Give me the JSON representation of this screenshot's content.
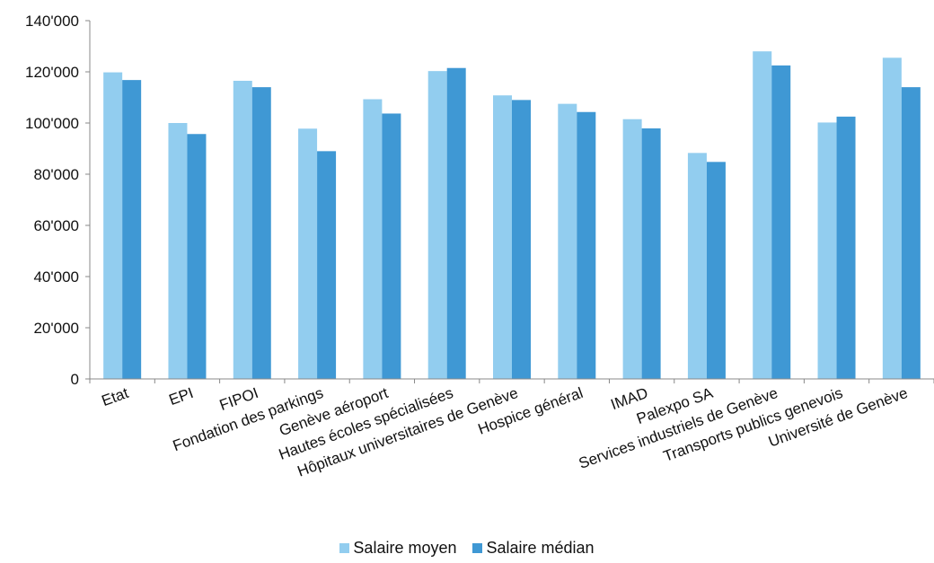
{
  "chart_data": {
    "type": "bar",
    "categories": [
      "Etat",
      "EPI",
      "FIPOI",
      "Fondation des parkings",
      "Genève aéroport",
      "Hautes écoles spécialisées",
      "Hôpitaux universitaires de Genève",
      "Hospice général",
      "IMAD",
      "Palexpo SA",
      "Services industriels de Genève",
      "Transports publics genevois",
      "Université de Genève"
    ],
    "series": [
      {
        "name": "Salaire moyen",
        "color": "#92cdef",
        "values": [
          119800,
          100000,
          116500,
          97800,
          109300,
          120300,
          110800,
          107500,
          101500,
          88300,
          128000,
          100200,
          125500
        ]
      },
      {
        "name": "Salaire médian",
        "color": "#3f98d4",
        "values": [
          116800,
          95700,
          114000,
          89000,
          103700,
          121500,
          109000,
          104300,
          97900,
          84800,
          122500,
          102500,
          114000
        ]
      }
    ],
    "yticks": [
      "0",
      "20'000",
      "40'000",
      "60'000",
      "80'000",
      "100'000",
      "120'000",
      "140'000"
    ],
    "ylim": [
      0,
      140000
    ],
    "grid": false,
    "legend_position": "bottom"
  }
}
